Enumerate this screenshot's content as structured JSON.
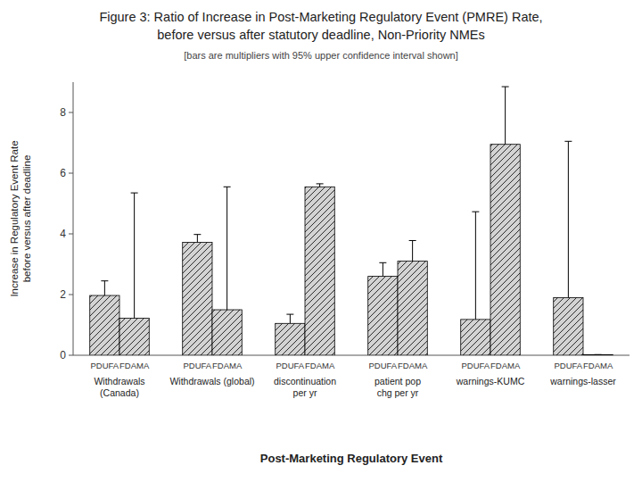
{
  "chart_data": {
    "type": "bar",
    "title": "Figure 3: Ratio of Increase in Post-Marketing Regulatory Event (PMRE) Rate,\nbefore versus after statutory deadline, Non-Priority NMEs",
    "subtitle": "[bars are multipliers with 95% upper confidence interval shown]",
    "x_label": "Post-Marketing Regulatory Event",
    "y_label": "Increase in Regulatory Event Rate\nbefore versus after deadline",
    "categories": [
      "Withdrawals (Canada)",
      "Withdrawals (global)",
      "discontinuation per yr",
      "patient pop chg per yr",
      "warnings-KUMC",
      "warnings-lasser"
    ],
    "series": [
      {
        "name": "PDUFA",
        "color": "#d3d3d3",
        "values": [
          1.97,
          3.72,
          1.05,
          2.6,
          1.18,
          1.9
        ],
        "error_up": [
          0.48,
          0.26,
          0.3,
          0.45,
          3.55,
          5.15
        ]
      },
      {
        "name": "FDAMA",
        "color": "#d3d3d3",
        "values": [
          1.22,
          1.5,
          5.55,
          3.1,
          6.95,
          0.02
        ],
        "error_up": [
          4.13,
          4.05,
          0.1,
          0.68,
          1.9,
          0
        ]
      }
    ],
    "ylim": [
      0,
      9.0
    ],
    "yticks": [
      0,
      2,
      4,
      6,
      8
    ],
    "grid": false
  }
}
